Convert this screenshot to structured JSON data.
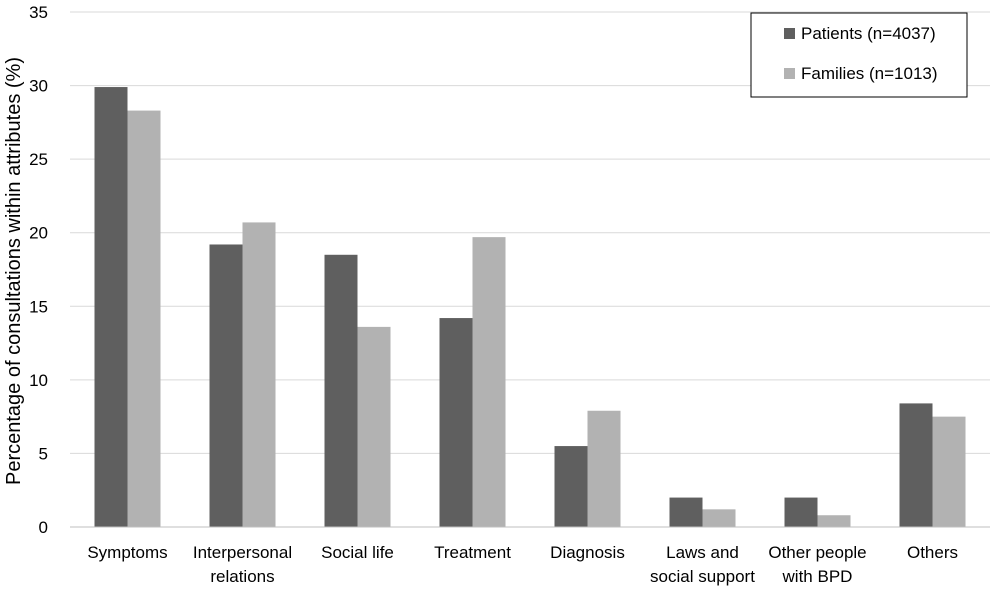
{
  "chart_data": {
    "type": "bar",
    "title": "",
    "xlabel": "",
    "ylabel": "Percentage of consultations within attributes (%)",
    "ylim": [
      0,
      35
    ],
    "yticks": [
      0,
      5,
      10,
      15,
      20,
      25,
      30,
      35
    ],
    "grid": true,
    "legend_position": "top-right",
    "categories": [
      [
        "Symptoms"
      ],
      [
        "Interpersonal",
        "relations"
      ],
      [
        "Social life"
      ],
      [
        "Treatment"
      ],
      [
        "Diagnosis"
      ],
      [
        "Laws and",
        "social support"
      ],
      [
        "Other people",
        "with BPD"
      ],
      [
        "Others"
      ]
    ],
    "series": [
      {
        "name": "Patients (n=4037)",
        "color": "#5f5f5f",
        "values": [
          29.9,
          19.2,
          18.5,
          14.2,
          5.5,
          2.0,
          2.0,
          8.4
        ]
      },
      {
        "name": "Families (n=1013)",
        "color": "#b2b2b2",
        "values": [
          28.3,
          20.7,
          13.6,
          19.7,
          7.9,
          1.2,
          0.8,
          7.5
        ]
      }
    ]
  }
}
